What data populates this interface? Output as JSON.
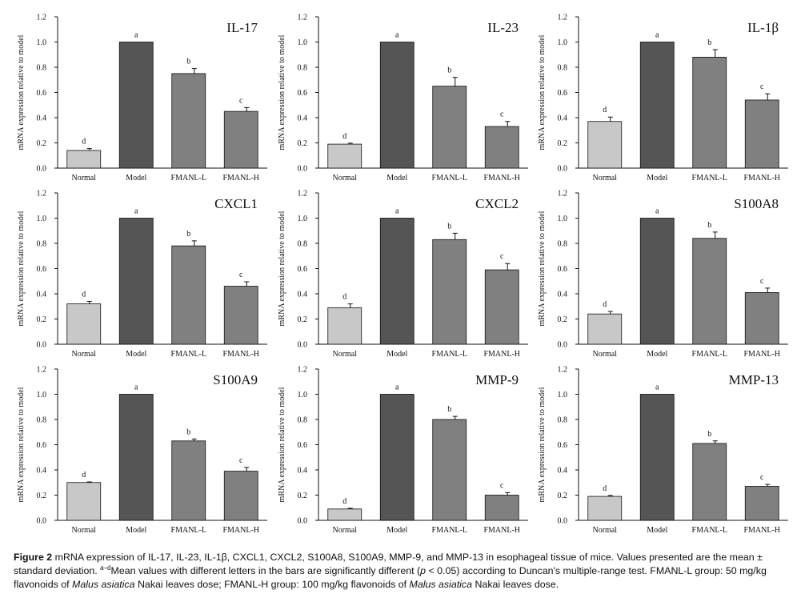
{
  "figure": {
    "categories": [
      "Normal",
      "Model",
      "FMANL-L",
      "FMANL-H"
    ],
    "bar_colors": [
      "#c8c8c8",
      "#555555",
      "#808080",
      "#808080"
    ],
    "ylabel": "mRNA expression relative to model",
    "yticks": [
      "0.0",
      "0.2",
      "0.4",
      "0.6",
      "0.8",
      "1.0",
      "1.2"
    ]
  },
  "chart_data": [
    {
      "type": "bar",
      "title": "IL-17",
      "categories": [
        "Normal",
        "Model",
        "FMANL-L",
        "FMANL-H"
      ],
      "values": [
        0.14,
        1.0,
        0.75,
        0.45
      ],
      "errors": [
        0.015,
        0,
        0.04,
        0.03
      ],
      "letters": [
        "d",
        "a",
        "b",
        "c"
      ],
      "ylabel": "mRNA expression relative to model",
      "ylim": [
        0,
        1.2
      ]
    },
    {
      "type": "bar",
      "title": "IL-23",
      "categories": [
        "Normal",
        "Model",
        "FMANL-L",
        "FMANL-H"
      ],
      "values": [
        0.19,
        1.0,
        0.65,
        0.33
      ],
      "errors": [
        0.008,
        0,
        0.07,
        0.04
      ],
      "letters": [
        "d",
        "a",
        "b",
        "c"
      ],
      "ylabel": "mRNA expression relative to model",
      "ylim": [
        0,
        1.2
      ]
    },
    {
      "type": "bar",
      "title": "IL-1β",
      "categories": [
        "Normal",
        "Model",
        "FMANL-L",
        "FMANL-H"
      ],
      "values": [
        0.37,
        1.0,
        0.88,
        0.54
      ],
      "errors": [
        0.035,
        0,
        0.06,
        0.05
      ],
      "letters": [
        "d",
        "a",
        "b",
        "c"
      ],
      "ylabel": "mRNA expression relative to model",
      "ylim": [
        0,
        1.2
      ]
    },
    {
      "type": "bar",
      "title": "CXCL1",
      "categories": [
        "Normal",
        "Model",
        "FMANL-L",
        "FMANL-H"
      ],
      "values": [
        0.32,
        1.0,
        0.78,
        0.46
      ],
      "errors": [
        0.02,
        0,
        0.04,
        0.035
      ],
      "letters": [
        "d",
        "a",
        "b",
        "c"
      ],
      "ylabel": "mRNA expression relative to model",
      "ylim": [
        0,
        1.2
      ]
    },
    {
      "type": "bar",
      "title": "CXCL2",
      "categories": [
        "Normal",
        "Model",
        "FMANL-L",
        "FMANL-H"
      ],
      "values": [
        0.29,
        1.0,
        0.83,
        0.59
      ],
      "errors": [
        0.03,
        0,
        0.05,
        0.05
      ],
      "letters": [
        "d",
        "a",
        "b",
        "c"
      ],
      "ylabel": "mRNA expression relative to model",
      "ylim": [
        0,
        1.2
      ]
    },
    {
      "type": "bar",
      "title": "S100A8",
      "categories": [
        "Normal",
        "Model",
        "FMANL-L",
        "FMANL-H"
      ],
      "values": [
        0.24,
        1.0,
        0.84,
        0.41
      ],
      "errors": [
        0.02,
        0,
        0.05,
        0.035
      ],
      "letters": [
        "d",
        "a",
        "b",
        "c"
      ],
      "ylabel": "mRNA expression relative to model",
      "ylim": [
        0,
        1.2
      ]
    },
    {
      "type": "bar",
      "title": "S100A9",
      "categories": [
        "Normal",
        "Model",
        "FMANL-L",
        "FMANL-H"
      ],
      "values": [
        0.3,
        1.0,
        0.63,
        0.39
      ],
      "errors": [
        0.005,
        0,
        0.015,
        0.03
      ],
      "letters": [
        "d",
        "a",
        "b",
        "c"
      ],
      "ylabel": "mRNA expression relative to model",
      "ylim": [
        0,
        1.2
      ]
    },
    {
      "type": "bar",
      "title": "MMP-9",
      "categories": [
        "Normal",
        "Model",
        "FMANL-L",
        "FMANL-H"
      ],
      "values": [
        0.09,
        1.0,
        0.8,
        0.2
      ],
      "errors": [
        0.005,
        0,
        0.025,
        0.02
      ],
      "letters": [
        "d",
        "a",
        "b",
        "c"
      ],
      "ylabel": "mRNA expression relative to model",
      "ylim": [
        0,
        1.2
      ]
    },
    {
      "type": "bar",
      "title": "MMP-13",
      "categories": [
        "Normal",
        "Model",
        "FMANL-L",
        "FMANL-H"
      ],
      "values": [
        0.19,
        1.0,
        0.61,
        0.27
      ],
      "errors": [
        0.008,
        0,
        0.02,
        0.015
      ],
      "letters": [
        "d",
        "a",
        "b",
        "c"
      ],
      "ylabel": "mRNA expression relative to model",
      "ylim": [
        0,
        1.2
      ]
    }
  ],
  "caption": {
    "label": "Figure 2",
    "text1": " mRNA expression of IL-17, IL-23, IL-1β, CXCL1, CXCL2, S100A8, S100A9, MMP-9, and MMP-13 in esophageal tissue of mice. Values presented are the mean ± standard deviation. ",
    "sup": "a–d",
    "text2": "Mean values with different letters in the bars are significantly different (",
    "p_italic": "p",
    "text3": " < 0.05) according to Duncan's multiple-range test. FMANL-L group: 50 mg/kg flavonoids of ",
    "species1": "Malus asiatica",
    "text4": " Nakai leaves dose; FMANL-H group: 100 mg/kg flavonoids of ",
    "species2": "Malus asiatica",
    "text5": " Nakai leaves dose."
  }
}
